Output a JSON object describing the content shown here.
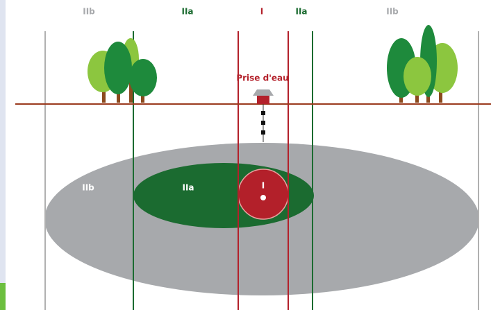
{
  "top_labels": [
    "IIb",
    "IIa",
    "I",
    "IIa",
    "IIb"
  ],
  "intake_label": "Prise d'eau",
  "zone_labels": [
    "IIb",
    "IIa",
    "I"
  ]
}
